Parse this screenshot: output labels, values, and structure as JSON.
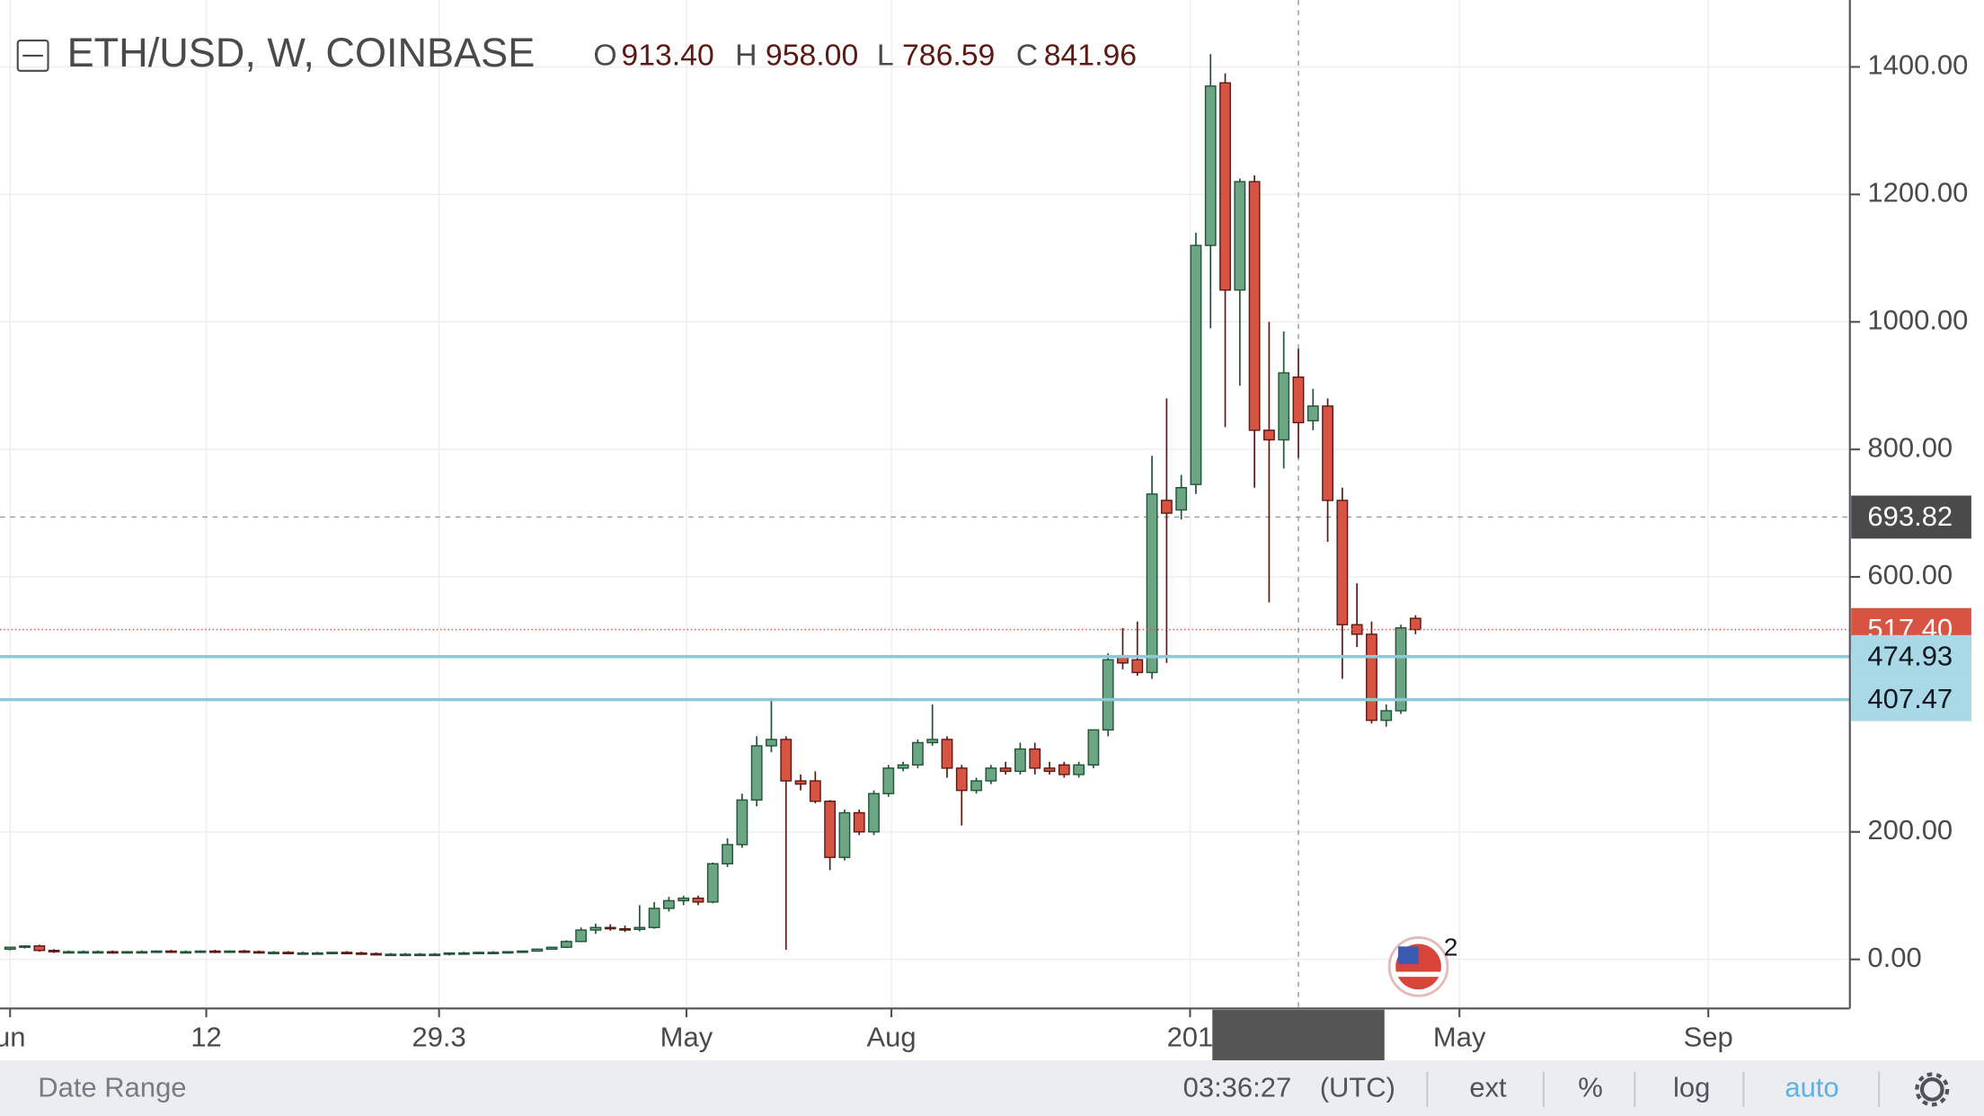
{
  "header": {
    "symbol": "ETH/USD, W, COINBASE",
    "o_label": "O",
    "o": "913.40",
    "h_label": "H",
    "h": "958.00",
    "l_label": "L",
    "l": "786.59",
    "c_label": "C",
    "c": "841.96"
  },
  "chart_data": {
    "type": "candlestick",
    "open": [
      16,
      19,
      21,
      14,
      12,
      12,
      12,
      12,
      11,
      12,
      12,
      13,
      12,
      12,
      13,
      12,
      13,
      12,
      11,
      11,
      10,
      10,
      10,
      11,
      10,
      9,
      8,
      8,
      8,
      8,
      8,
      10,
      10,
      11,
      11,
      12,
      13,
      16,
      19,
      28,
      46,
      50,
      48,
      47,
      50,
      80,
      92,
      96,
      90,
      150,
      180,
      250,
      335,
      345,
      280,
      280,
      248,
      160,
      230,
      200,
      260,
      300,
      305,
      340,
      345,
      300,
      265,
      280,
      300,
      295,
      330,
      300,
      305,
      290,
      305,
      360,
      475,
      470,
      450,
      720,
      705,
      745,
      1120,
      1375,
      1050,
      1220,
      830,
      815,
      913.4,
      845,
      868,
      720,
      525,
      510,
      375,
      390,
      535
    ],
    "high": [
      20,
      22,
      23,
      16,
      14,
      14,
      14,
      14,
      13,
      14,
      14,
      15,
      14,
      14,
      15,
      14,
      15,
      14,
      13,
      13,
      12,
      12,
      12,
      13,
      12,
      11,
      10,
      10,
      10,
      10,
      10,
      12,
      12,
      13,
      13,
      14,
      17,
      20,
      30,
      50,
      56,
      55,
      53,
      85,
      90,
      98,
      100,
      100,
      152,
      190,
      260,
      350,
      410,
      350,
      290,
      295,
      250,
      235,
      235,
      265,
      305,
      310,
      345,
      400,
      350,
      305,
      285,
      305,
      310,
      340,
      340,
      310,
      310,
      310,
      360,
      480,
      520,
      530,
      790,
      880,
      760,
      1140,
      1420,
      1390,
      1225,
      1230,
      1000,
      985,
      958,
      895,
      880,
      740,
      590,
      530,
      400,
      525,
      540
    ],
    "low": [
      14,
      17,
      12,
      10,
      10,
      10,
      10,
      9,
      9,
      10,
      10,
      10,
      10,
      10,
      10,
      10,
      10,
      9,
      9,
      8,
      8,
      8,
      8,
      8,
      7,
      6,
      6,
      6,
      6,
      6,
      6,
      8,
      8,
      9,
      9,
      10,
      12,
      15,
      18,
      27,
      40,
      45,
      43,
      44,
      48,
      75,
      85,
      85,
      88,
      145,
      175,
      240,
      325,
      15,
      265,
      245,
      140,
      155,
      195,
      195,
      255,
      295,
      300,
      335,
      285,
      210,
      260,
      275,
      290,
      290,
      290,
      290,
      285,
      285,
      300,
      350,
      455,
      445,
      440,
      465,
      690,
      730,
      990,
      835,
      900,
      740,
      560,
      770,
      786.59,
      830,
      655,
      440,
      490,
      370,
      365,
      385,
      510
    ],
    "close": [
      19,
      21,
      14,
      12,
      12,
      12,
      12,
      11,
      12,
      12,
      13,
      12,
      12,
      13,
      12,
      13,
      12,
      11,
      11,
      10,
      10,
      10,
      11,
      10,
      9,
      8,
      8,
      8,
      8,
      8,
      10,
      10,
      11,
      11,
      12,
      13,
      16,
      19,
      28,
      46,
      50,
      48,
      47,
      50,
      80,
      92,
      96,
      90,
      150,
      180,
      250,
      335,
      345,
      280,
      275,
      248,
      160,
      230,
      200,
      260,
      300,
      305,
      340,
      345,
      300,
      265,
      280,
      300,
      295,
      330,
      300,
      295,
      290,
      305,
      360,
      470,
      465,
      450,
      730,
      700,
      740,
      1120,
      1370,
      1050,
      1220,
      830,
      815,
      920,
      841.96,
      868,
      720,
      525,
      510,
      375,
      390,
      520,
      517.4
    ],
    "up_color": "#6ba583",
    "down_color": "#d75442",
    "up_border": "#225437",
    "down_border": "#5b1a13",
    "xlim": [
      -0.69,
      125.67
    ],
    "xticks": [
      {
        "value": 0,
        "label": "un"
      },
      {
        "value": 13.4,
        "label": "12"
      },
      29.3,
      {
        "value": 46.2,
        "label": "May"
      },
      {
        "value": 60.2,
        "label": "Aug"
      },
      {
        "value": 80.6,
        "label": "201"
      },
      {
        "value": 99,
        "label": "May"
      },
      {
        "value": 116,
        "label": "Sep"
      }
    ],
    "ylim": [
      -77,
      1505
    ],
    "yticks": [
      {
        "value": 0,
        "label": "0.00"
      },
      {
        "value": 200,
        "label": "200.00"
      },
      {
        "value": 600,
        "label": "600.00"
      },
      {
        "value": 800,
        "label": "800.00"
      },
      {
        "value": 1000,
        "label": "1000.00"
      },
      {
        "value": 1200,
        "label": "1200.00"
      },
      {
        "value": 1400,
        "label": "1400.00"
      }
    ],
    "grid": true,
    "price_lines": [
      {
        "value": 517.4,
        "label": "517.40",
        "color": "#d75442",
        "style": "dotted",
        "text_color": "#ffffff"
      },
      {
        "value": 474.93,
        "label": "474.93",
        "color": "#8ec9d8",
        "style": "solid",
        "text_color": "#131722"
      },
      {
        "value": 407.47,
        "label": "407.47",
        "color": "#8ec9d8",
        "style": "solid",
        "text_color": "#131722"
      }
    ],
    "crosshair": {
      "x": 88,
      "y": {
        "value": 693.82,
        "label": "693.82"
      }
    }
  },
  "events_badge": 2,
  "toolbar": {
    "date_range": "Date Range",
    "time": "03:36:27",
    "timezone": "(UTC)",
    "buttons": [
      "ext",
      "%",
      "log",
      "auto"
    ]
  }
}
